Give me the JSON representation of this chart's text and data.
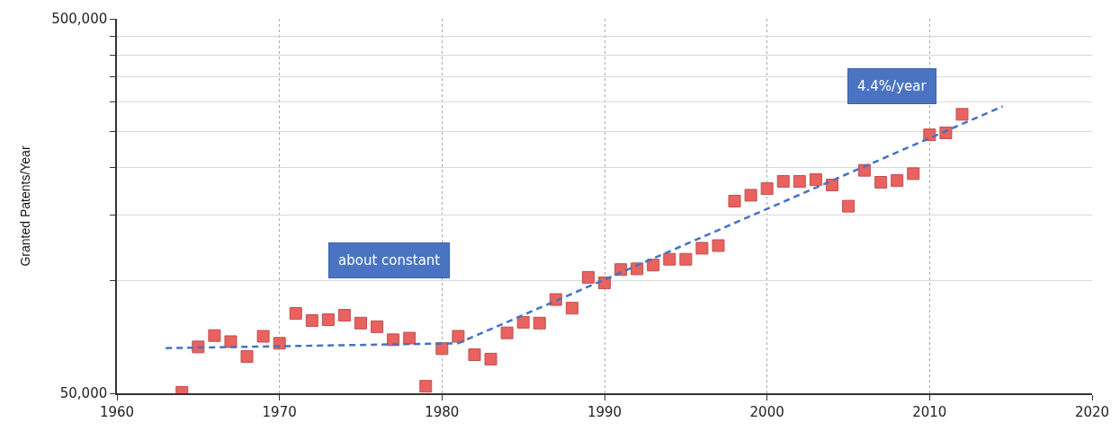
{
  "chart_data": {
    "type": "scatter",
    "ylabel": "Granted Patents/Year",
    "log": "y",
    "grid": true,
    "xlim": [
      1960,
      2020
    ],
    "xticks": [
      1960,
      1970,
      1980,
      1990,
      2000,
      2010,
      2020
    ],
    "ylim": [
      50000,
      500000
    ],
    "yticks": [
      {
        "value": 50000,
        "label": "50,000"
      },
      {
        "value": 100000,
        "label": null
      },
      {
        "value": 150000,
        "label": null
      },
      {
        "value": 200000,
        "label": null
      },
      {
        "value": 250000,
        "label": null
      },
      {
        "value": 300000,
        "label": null
      },
      {
        "value": 350000,
        "label": null
      },
      {
        "value": 400000,
        "label": null
      },
      {
        "value": 450000,
        "label": null
      },
      {
        "value": 500000,
        "label": "500,000"
      }
    ],
    "series": [
      {
        "color": "#e8625f",
        "marker": "square",
        "x": [
          1964,
          1965,
          1966,
          1967,
          1968,
          1969,
          1970,
          1971,
          1972,
          1973,
          1974,
          1975,
          1976,
          1977,
          1978,
          1979,
          1980,
          1981,
          1982,
          1983,
          1984,
          1985,
          1986,
          1987,
          1988,
          1989,
          1990,
          1991,
          1992,
          1993,
          1994,
          1995,
          1996,
          1997,
          1998,
          1999,
          2000,
          2001,
          2002,
          2003,
          2004,
          2005,
          2006,
          2007,
          2008,
          2009,
          2010,
          2011,
          2012
        ],
        "values": [
          50300,
          66500,
          71300,
          68700,
          62700,
          71000,
          68000,
          81700,
          78200,
          78600,
          80800,
          77000,
          75300,
          69500,
          70200,
          52200,
          65800,
          71000,
          63400,
          61700,
          72500,
          77400,
          77000,
          89000,
          84400,
          102000,
          98600,
          107000,
          107500,
          110000,
          114000,
          114000,
          122000,
          124000,
          163000,
          169000,
          176000,
          184000,
          184000,
          186000,
          180000,
          158000,
          197000,
          183000,
          185000,
          193000,
          245000,
          248000,
          278000
        ]
      },
      {
        "type": "line",
        "color": "#4472c4",
        "line_style": "dashed",
        "marker": "none",
        "x": [
          1963,
          1981,
          2014.5
        ],
        "values": [
          66000,
          68000,
          292000
        ]
      }
    ],
    "annotations": [
      "about constant",
      "4.4%/year"
    ]
  }
}
